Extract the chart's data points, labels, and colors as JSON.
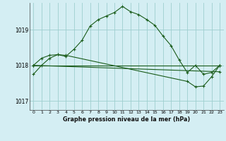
{
  "title": "Graphe pression niveau de la mer (hPa)",
  "background_color": "#d4eef3",
  "grid_color": "#9ecece",
  "line_color": "#1a5c1a",
  "xlim": [
    -0.5,
    23.5
  ],
  "ylim": [
    1016.75,
    1019.75
  ],
  "yticks": [
    1017,
    1018,
    1019
  ],
  "xticks": [
    0,
    1,
    2,
    3,
    4,
    5,
    6,
    7,
    8,
    9,
    10,
    11,
    12,
    13,
    14,
    15,
    16,
    17,
    18,
    19,
    20,
    21,
    22,
    23
  ],
  "line1_x": [
    0,
    1,
    2,
    3,
    4,
    5,
    6,
    7,
    8,
    9,
    10,
    11,
    12,
    13,
    14,
    15,
    16,
    17,
    18,
    19,
    20,
    21,
    22,
    23
  ],
  "line1_y": [
    1017.75,
    1018.0,
    1018.2,
    1018.3,
    1018.25,
    1018.45,
    1018.7,
    1019.1,
    1019.28,
    1019.38,
    1019.48,
    1019.65,
    1019.5,
    1019.42,
    1019.28,
    1019.12,
    1018.82,
    1018.55,
    1018.15,
    1017.8,
    1018.0,
    1017.75,
    1017.8,
    1018.0
  ],
  "line2_x": [
    0,
    1,
    2,
    3,
    4,
    19,
    20,
    21,
    22,
    23
  ],
  "line2_y": [
    1018.0,
    1018.2,
    1018.28,
    1018.3,
    1018.28,
    1017.55,
    1017.4,
    1017.42,
    1017.68,
    1018.0
  ],
  "line3_x": [
    0,
    23
  ],
  "line3_y": [
    1018.0,
    1018.0
  ],
  "line4_x": [
    0,
    23
  ],
  "line4_y": [
    1018.0,
    1017.82
  ]
}
